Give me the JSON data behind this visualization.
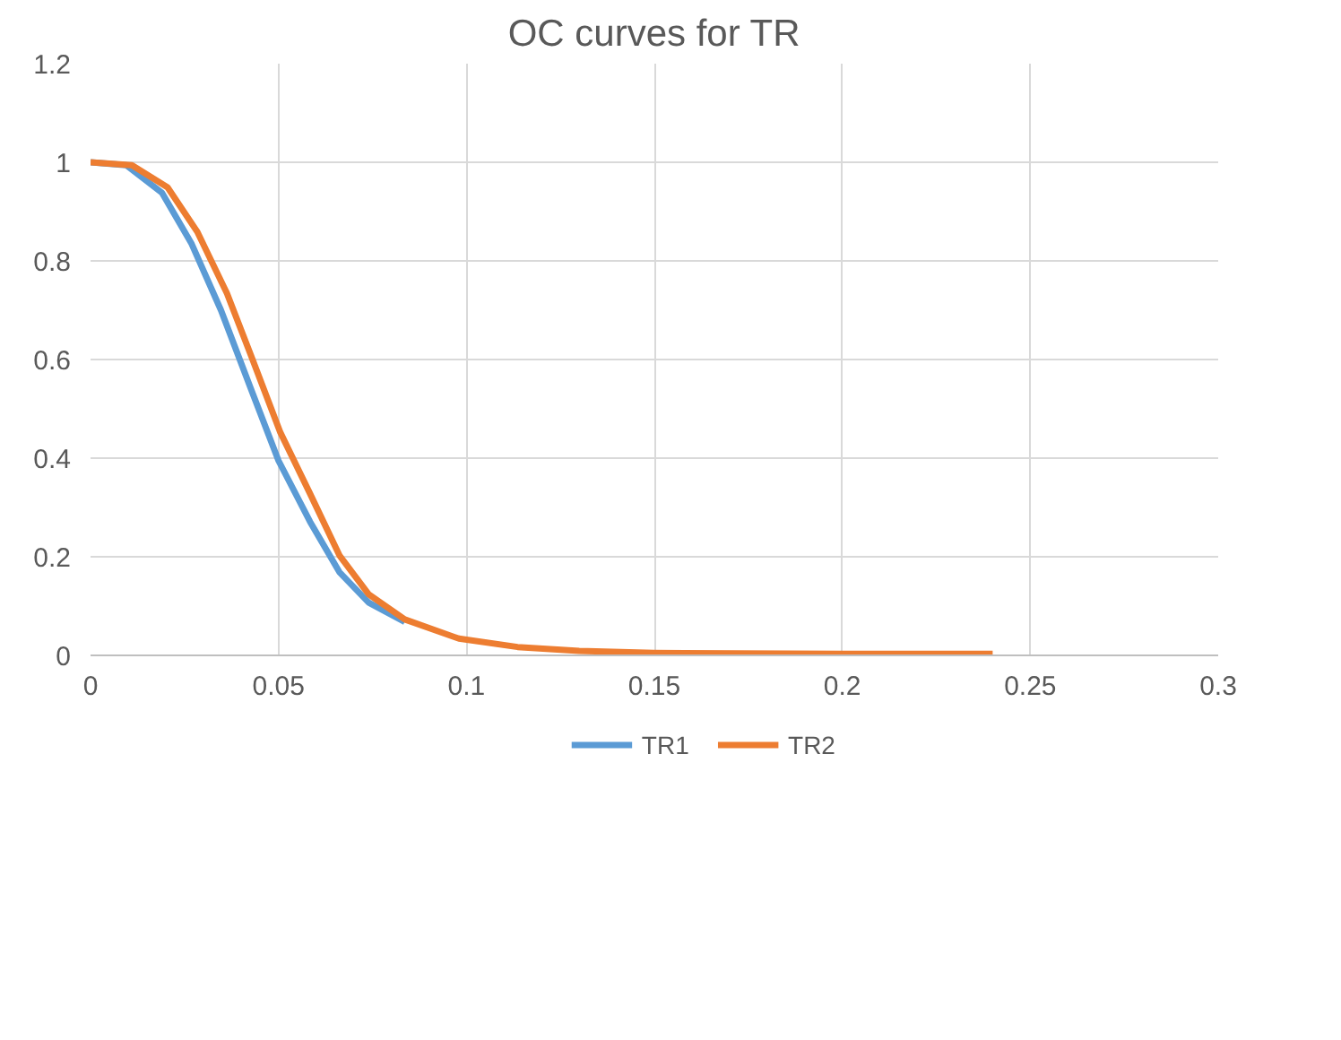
{
  "chart_data": {
    "type": "line",
    "title": "OC curves for TR",
    "xlim": [
      0,
      0.3
    ],
    "xticks": [
      0,
      0.05,
      0.1,
      0.15,
      0.2,
      0.25,
      0.3
    ],
    "ylim": [
      0,
      1.2
    ],
    "yticks": [
      0,
      0.2,
      0.4,
      0.6,
      0.8,
      1,
      1.2
    ],
    "grid": true,
    "legend": "bottom",
    "series": [
      {
        "name": "TR1",
        "color": "#5b9bd5",
        "x": [
          0,
          0.0095,
          0.019,
          0.0268,
          0.0347,
          0.0426,
          0.05,
          0.0584,
          0.0662,
          0.074,
          0.0836
        ],
        "values": [
          1,
          0.994,
          0.938,
          0.836,
          0.7,
          0.542,
          0.395,
          0.271,
          0.169,
          0.107,
          0.068
        ]
      },
      {
        "name": "TR2",
        "color": "#ed7d31",
        "x": [
          0,
          0.011,
          0.0205,
          0.0284,
          0.0363,
          0.0426,
          0.0505,
          0.0584,
          0.0662,
          0.074,
          0.0836,
          0.098,
          0.1136,
          0.13,
          0.15,
          0.2,
          0.24
        ],
        "values": [
          1,
          0.994,
          0.949,
          0.859,
          0.734,
          0.61,
          0.452,
          0.328,
          0.203,
          0.124,
          0.073,
          0.034,
          0.017,
          0.009,
          0.005,
          0.003,
          0.003
        ]
      }
    ]
  }
}
